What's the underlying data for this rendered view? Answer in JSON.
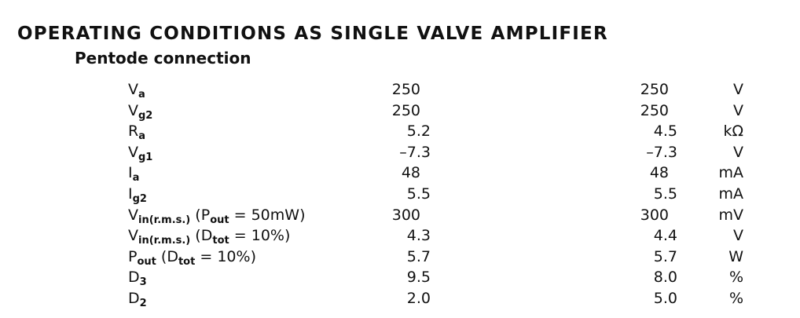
{
  "title": "OPERATING CONDITIONS AS SINGLE VALVE AMPLIFIER",
  "subtitle": "Pentode connection",
  "table": {
    "rows": [
      {
        "symbol": [
          {
            "text": "V"
          },
          {
            "sub": "a"
          }
        ],
        "values": [
          "250",
          "250"
        ],
        "unit": "V"
      },
      {
        "symbol": [
          {
            "text": "V"
          },
          {
            "sub": "g2"
          }
        ],
        "values": [
          "250",
          "250"
        ],
        "unit": "V"
      },
      {
        "symbol": [
          {
            "text": "R"
          },
          {
            "sub": "a"
          }
        ],
        "values": [
          "5.2",
          "4.5"
        ],
        "unit": "kΩ"
      },
      {
        "symbol": [
          {
            "text": "V"
          },
          {
            "sub": "g1"
          }
        ],
        "values": [
          "–7.3",
          "–7.3"
        ],
        "unit": "V"
      },
      {
        "symbol": [
          {
            "text": "I"
          },
          {
            "sub": "a"
          }
        ],
        "values": [
          "48",
          "48"
        ],
        "unit": "mA"
      },
      {
        "symbol": [
          {
            "text": "I"
          },
          {
            "sub": "g2"
          }
        ],
        "values": [
          "5.5",
          "5.5"
        ],
        "unit": "mA"
      },
      {
        "symbol": [
          {
            "text": "V"
          },
          {
            "sub": "in(r.m.s.)"
          },
          {
            "text": " (P"
          },
          {
            "sub": "out"
          },
          {
            "text": " = 50mW)"
          }
        ],
        "values": [
          "300",
          "300"
        ],
        "unit": "mV"
      },
      {
        "symbol": [
          {
            "text": "V"
          },
          {
            "sub": "in(r.m.s.)"
          },
          {
            "text": " (D"
          },
          {
            "sub": "tot"
          },
          {
            "text": " = 10%)"
          }
        ],
        "values": [
          "4.3",
          "4.4"
        ],
        "unit": "V"
      },
      {
        "symbol": [
          {
            "text": "P"
          },
          {
            "sub": "out"
          },
          {
            "text": " (D"
          },
          {
            "sub": "tot"
          },
          {
            "text": " = 10%)"
          }
        ],
        "values": [
          "5.7",
          "5.7"
        ],
        "unit": "W"
      },
      {
        "symbol": [
          {
            "text": "D"
          },
          {
            "sub": "3"
          }
        ],
        "values": [
          "9.5",
          "8.0"
        ],
        "unit": "%"
      },
      {
        "symbol": [
          {
            "text": "D"
          },
          {
            "sub": "2"
          }
        ],
        "values": [
          "2.0",
          "5.0"
        ],
        "unit": "%"
      }
    ]
  }
}
